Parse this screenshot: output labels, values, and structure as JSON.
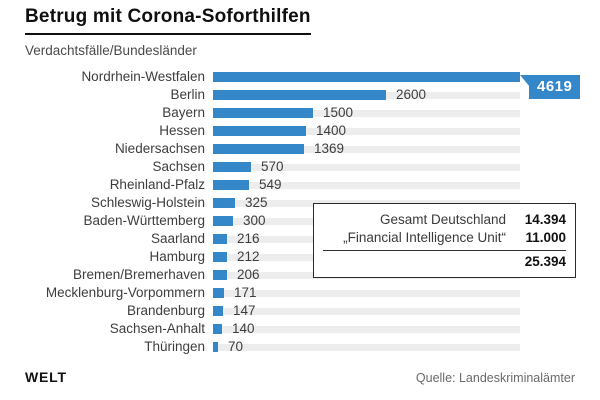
{
  "header": {
    "title": "Betrug mit Corona-Soforthilfen",
    "subtitle": "Verdachtsfälle/Bundesländer"
  },
  "chart_data": {
    "type": "bar",
    "orientation": "horizontal",
    "title": "Betrug mit Corona-Soforthilfen",
    "subtitle": "Verdachtsfälle/Bundesländer",
    "categories": [
      "Nordrhein-Westfalen",
      "Berlin",
      "Bayern",
      "Hessen",
      "Niedersachsen",
      "Sachsen",
      "Rheinland-Pfalz",
      "Schleswig-Holstein",
      "Baden-Württemberg",
      "Saarland",
      "Hamburg",
      "Bremen/Bremerhaven",
      "Mecklenburg-Vorpommern",
      "Brandenburg",
      "Sachsen-Anhalt",
      "Thüringen"
    ],
    "values": [
      4619,
      2600,
      1500,
      1400,
      1369,
      570,
      549,
      325,
      300,
      216,
      212,
      206,
      171,
      147,
      140,
      70
    ],
    "xlim": [
      0,
      4619
    ],
    "highlight_index": 0,
    "highlight_label": "4619",
    "bar_color": "#3487c8",
    "track_color": "#ededed",
    "grid": false,
    "legend": false
  },
  "summary_box": {
    "rows": [
      {
        "label": "Gesamt Deutschland",
        "value": "14.394"
      },
      {
        "label": "„Financial Intelligence Unit“",
        "value": "11.000"
      }
    ],
    "total": "25.394"
  },
  "footer": {
    "brand": "WELT",
    "source": "Quelle: Landeskriminalämter"
  }
}
